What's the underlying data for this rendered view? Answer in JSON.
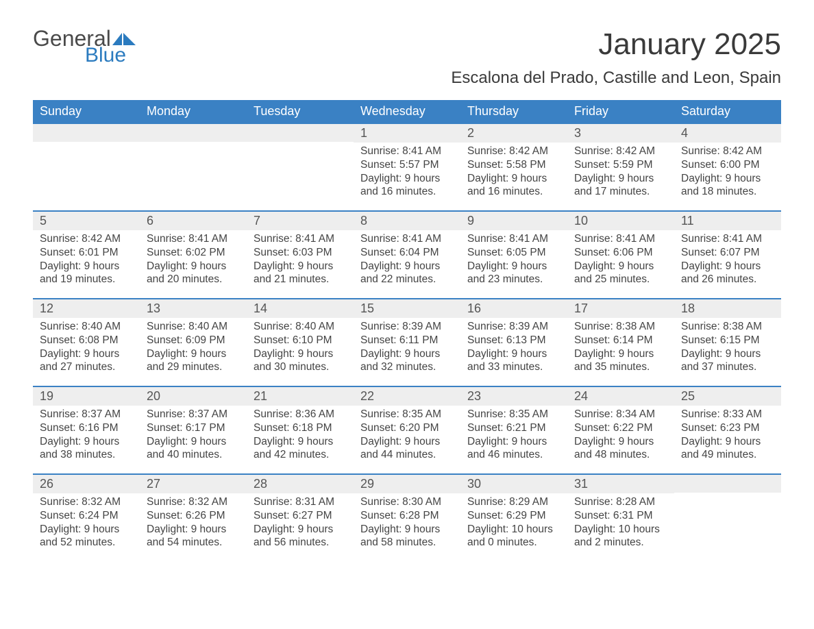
{
  "logo": {
    "word1": "General",
    "word2": "Blue",
    "color1": "#4a4a4a",
    "color2": "#2b7bbf"
  },
  "header": {
    "month_title": "January 2025",
    "location": "Escalona del Prado, Castille and Leon, Spain"
  },
  "calendar": {
    "day_labels": [
      "Sunday",
      "Monday",
      "Tuesday",
      "Wednesday",
      "Thursday",
      "Friday",
      "Saturday"
    ],
    "header_bg": "#3a81c4",
    "header_fg": "#ffffff",
    "daynum_bg": "#eeeeee",
    "row_border_color": "#3a81c4",
    "text_color": "#444444",
    "font_size_header": 18,
    "font_size_daynum": 18,
    "font_size_body": 15.5,
    "weeks": [
      [
        null,
        null,
        null,
        {
          "n": "1",
          "sunrise": "Sunrise: 8:41 AM",
          "sunset": "Sunset: 5:57 PM",
          "d1": "Daylight: 9 hours",
          "d2": "and 16 minutes."
        },
        {
          "n": "2",
          "sunrise": "Sunrise: 8:42 AM",
          "sunset": "Sunset: 5:58 PM",
          "d1": "Daylight: 9 hours",
          "d2": "and 16 minutes."
        },
        {
          "n": "3",
          "sunrise": "Sunrise: 8:42 AM",
          "sunset": "Sunset: 5:59 PM",
          "d1": "Daylight: 9 hours",
          "d2": "and 17 minutes."
        },
        {
          "n": "4",
          "sunrise": "Sunrise: 8:42 AM",
          "sunset": "Sunset: 6:00 PM",
          "d1": "Daylight: 9 hours",
          "d2": "and 18 minutes."
        }
      ],
      [
        {
          "n": "5",
          "sunrise": "Sunrise: 8:42 AM",
          "sunset": "Sunset: 6:01 PM",
          "d1": "Daylight: 9 hours",
          "d2": "and 19 minutes."
        },
        {
          "n": "6",
          "sunrise": "Sunrise: 8:41 AM",
          "sunset": "Sunset: 6:02 PM",
          "d1": "Daylight: 9 hours",
          "d2": "and 20 minutes."
        },
        {
          "n": "7",
          "sunrise": "Sunrise: 8:41 AM",
          "sunset": "Sunset: 6:03 PM",
          "d1": "Daylight: 9 hours",
          "d2": "and 21 minutes."
        },
        {
          "n": "8",
          "sunrise": "Sunrise: 8:41 AM",
          "sunset": "Sunset: 6:04 PM",
          "d1": "Daylight: 9 hours",
          "d2": "and 22 minutes."
        },
        {
          "n": "9",
          "sunrise": "Sunrise: 8:41 AM",
          "sunset": "Sunset: 6:05 PM",
          "d1": "Daylight: 9 hours",
          "d2": "and 23 minutes."
        },
        {
          "n": "10",
          "sunrise": "Sunrise: 8:41 AM",
          "sunset": "Sunset: 6:06 PM",
          "d1": "Daylight: 9 hours",
          "d2": "and 25 minutes."
        },
        {
          "n": "11",
          "sunrise": "Sunrise: 8:41 AM",
          "sunset": "Sunset: 6:07 PM",
          "d1": "Daylight: 9 hours",
          "d2": "and 26 minutes."
        }
      ],
      [
        {
          "n": "12",
          "sunrise": "Sunrise: 8:40 AM",
          "sunset": "Sunset: 6:08 PM",
          "d1": "Daylight: 9 hours",
          "d2": "and 27 minutes."
        },
        {
          "n": "13",
          "sunrise": "Sunrise: 8:40 AM",
          "sunset": "Sunset: 6:09 PM",
          "d1": "Daylight: 9 hours",
          "d2": "and 29 minutes."
        },
        {
          "n": "14",
          "sunrise": "Sunrise: 8:40 AM",
          "sunset": "Sunset: 6:10 PM",
          "d1": "Daylight: 9 hours",
          "d2": "and 30 minutes."
        },
        {
          "n": "15",
          "sunrise": "Sunrise: 8:39 AM",
          "sunset": "Sunset: 6:11 PM",
          "d1": "Daylight: 9 hours",
          "d2": "and 32 minutes."
        },
        {
          "n": "16",
          "sunrise": "Sunrise: 8:39 AM",
          "sunset": "Sunset: 6:13 PM",
          "d1": "Daylight: 9 hours",
          "d2": "and 33 minutes."
        },
        {
          "n": "17",
          "sunrise": "Sunrise: 8:38 AM",
          "sunset": "Sunset: 6:14 PM",
          "d1": "Daylight: 9 hours",
          "d2": "and 35 minutes."
        },
        {
          "n": "18",
          "sunrise": "Sunrise: 8:38 AM",
          "sunset": "Sunset: 6:15 PM",
          "d1": "Daylight: 9 hours",
          "d2": "and 37 minutes."
        }
      ],
      [
        {
          "n": "19",
          "sunrise": "Sunrise: 8:37 AM",
          "sunset": "Sunset: 6:16 PM",
          "d1": "Daylight: 9 hours",
          "d2": "and 38 minutes."
        },
        {
          "n": "20",
          "sunrise": "Sunrise: 8:37 AM",
          "sunset": "Sunset: 6:17 PM",
          "d1": "Daylight: 9 hours",
          "d2": "and 40 minutes."
        },
        {
          "n": "21",
          "sunrise": "Sunrise: 8:36 AM",
          "sunset": "Sunset: 6:18 PM",
          "d1": "Daylight: 9 hours",
          "d2": "and 42 minutes."
        },
        {
          "n": "22",
          "sunrise": "Sunrise: 8:35 AM",
          "sunset": "Sunset: 6:20 PM",
          "d1": "Daylight: 9 hours",
          "d2": "and 44 minutes."
        },
        {
          "n": "23",
          "sunrise": "Sunrise: 8:35 AM",
          "sunset": "Sunset: 6:21 PM",
          "d1": "Daylight: 9 hours",
          "d2": "and 46 minutes."
        },
        {
          "n": "24",
          "sunrise": "Sunrise: 8:34 AM",
          "sunset": "Sunset: 6:22 PM",
          "d1": "Daylight: 9 hours",
          "d2": "and 48 minutes."
        },
        {
          "n": "25",
          "sunrise": "Sunrise: 8:33 AM",
          "sunset": "Sunset: 6:23 PM",
          "d1": "Daylight: 9 hours",
          "d2": "and 49 minutes."
        }
      ],
      [
        {
          "n": "26",
          "sunrise": "Sunrise: 8:32 AM",
          "sunset": "Sunset: 6:24 PM",
          "d1": "Daylight: 9 hours",
          "d2": "and 52 minutes."
        },
        {
          "n": "27",
          "sunrise": "Sunrise: 8:32 AM",
          "sunset": "Sunset: 6:26 PM",
          "d1": "Daylight: 9 hours",
          "d2": "and 54 minutes."
        },
        {
          "n": "28",
          "sunrise": "Sunrise: 8:31 AM",
          "sunset": "Sunset: 6:27 PM",
          "d1": "Daylight: 9 hours",
          "d2": "and 56 minutes."
        },
        {
          "n": "29",
          "sunrise": "Sunrise: 8:30 AM",
          "sunset": "Sunset: 6:28 PM",
          "d1": "Daylight: 9 hours",
          "d2": "and 58 minutes."
        },
        {
          "n": "30",
          "sunrise": "Sunrise: 8:29 AM",
          "sunset": "Sunset: 6:29 PM",
          "d1": "Daylight: 10 hours",
          "d2": "and 0 minutes."
        },
        {
          "n": "31",
          "sunrise": "Sunrise: 8:28 AM",
          "sunset": "Sunset: 6:31 PM",
          "d1": "Daylight: 10 hours",
          "d2": "and 2 minutes."
        },
        null
      ]
    ]
  }
}
